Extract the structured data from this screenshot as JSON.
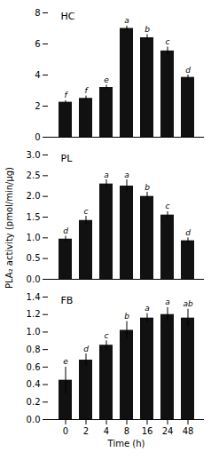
{
  "chart_data": [
    {
      "type": "bar",
      "title": "HC",
      "categories": [
        "0",
        "2",
        "4",
        "8",
        "16",
        "24",
        "48"
      ],
      "values": [
        2.25,
        2.5,
        3.2,
        7.0,
        6.4,
        5.55,
        3.85
      ],
      "errors": [
        0.1,
        0.15,
        0.15,
        0.15,
        0.2,
        0.25,
        0.15
      ],
      "annotations": [
        "f",
        "f",
        "e",
        "a",
        "b",
        "c",
        "d"
      ],
      "color": "#111111",
      "ylim": [
        0,
        8
      ],
      "yticks": [
        0,
        2,
        4,
        6,
        8
      ],
      "tick_labels": "y"
    },
    {
      "type": "bar",
      "title": "PL",
      "ylabel": "PLA₂ activity (pmol/min/μg)",
      "categories": [
        "0",
        "2",
        "4",
        "8",
        "16",
        "24",
        "48"
      ],
      "values": [
        0.97,
        1.42,
        2.3,
        2.25,
        2.0,
        1.55,
        0.93
      ],
      "errors": [
        0.07,
        0.1,
        0.1,
        0.15,
        0.1,
        0.08,
        0.07
      ],
      "annotations": [
        "d",
        "c",
        "a",
        "a",
        "b",
        "c",
        "d"
      ],
      "color": "#111111",
      "ylim": [
        0,
        3.0
      ],
      "yticks": [
        {
          "value": 0,
          "label": "0.0"
        },
        0.5,
        {
          "value": 1,
          "label": "1.0"
        },
        1.5,
        {
          "value": 2,
          "label": "2.0"
        },
        2.5,
        {
          "value": 3,
          "label": "3.0"
        }
      ],
      "tick_labels": "y"
    },
    {
      "type": "bar",
      "title": "FB",
      "xlabel": "Time (h)",
      "categories": [
        "0",
        "2",
        "4",
        "8",
        "16",
        "24",
        "48"
      ],
      "values": [
        0.45,
        0.68,
        0.85,
        1.02,
        1.16,
        1.2,
        1.16
      ],
      "errors": [
        0.15,
        0.07,
        0.05,
        0.1,
        0.05,
        0.08,
        0.1
      ],
      "annotations": [
        "e",
        "d",
        "c",
        "b",
        "a",
        "a",
        "ab"
      ],
      "color": "#111111",
      "ylim": [
        0,
        1.4
      ],
      "yticks": [
        {
          "value": 0,
          "label": "0.0"
        },
        0.2,
        0.4,
        0.6,
        0.8,
        {
          "value": 1,
          "label": "1.0"
        },
        1.2,
        1.4
      ]
    }
  ]
}
